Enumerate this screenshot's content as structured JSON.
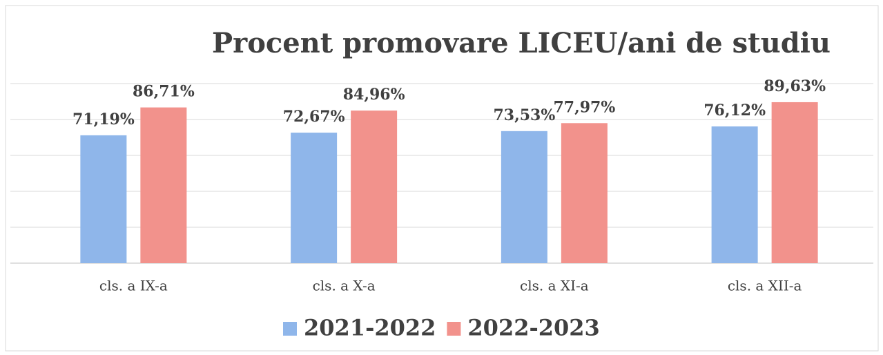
{
  "chart_data": {
    "type": "bar",
    "title": "Procent promovare LICEU/ani de studiu",
    "categories": [
      "cls. a IX-a",
      "cls. a X-a",
      "cls. a XI-a",
      "cls. a XII-a"
    ],
    "series": [
      {
        "name": "2021-2022",
        "color": "#8fb6ea",
        "values": [
          71.19,
          72.67,
          73.53,
          76.12
        ],
        "value_labels": [
          "71,19%",
          "72,67%",
          "73,53%",
          "76,12%"
        ]
      },
      {
        "name": "2022-2023",
        "color": "#f2928c",
        "values": [
          86.71,
          84.96,
          77.97,
          89.63
        ],
        "value_labels": [
          "86,71%",
          "84,96%",
          "77,97%",
          "89,63%"
        ]
      }
    ],
    "ylim": [
      0,
      100
    ],
    "yticks": [
      0,
      20,
      40,
      60,
      80,
      100
    ],
    "grid": true,
    "legend": "bottom"
  }
}
